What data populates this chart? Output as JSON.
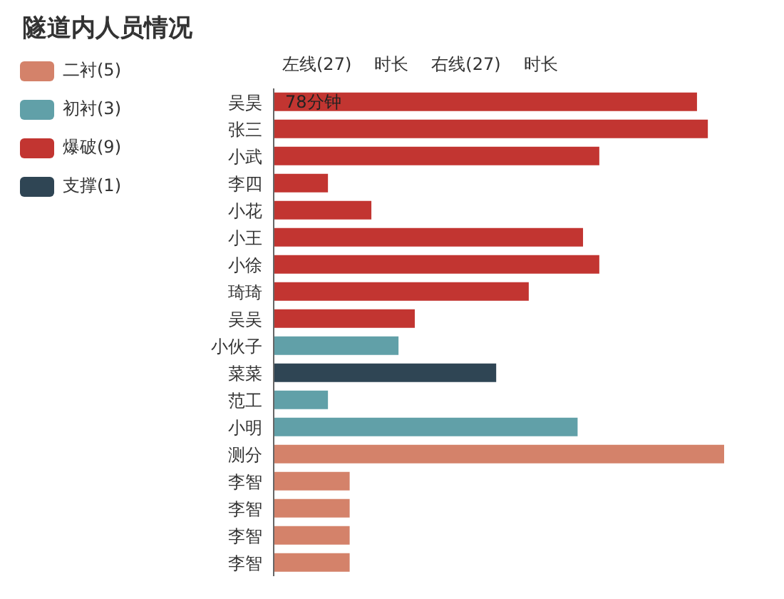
{
  "chart_data": {
    "type": "bar",
    "orientation": "horizontal",
    "stacked": true,
    "tick_labels": false,
    "title": "隧道内人员情况",
    "annotations": [
      "左线(27)",
      "时长",
      "右线(27)",
      "时长"
    ],
    "legend": "left",
    "categories": [
      "吴昊",
      "张三",
      "小武",
      "李四",
      "小花",
      "小王",
      "小徐",
      "琦琦",
      "吴吴",
      "小伙子",
      "菜菜",
      "范工",
      "小明",
      "测分",
      "李智",
      "李智",
      "李智",
      "李智"
    ],
    "series": [
      {
        "name": "二衬(5)",
        "color": "#d4826a",
        "values": [
          null,
          null,
          null,
          null,
          null,
          null,
          null,
          null,
          null,
          null,
          null,
          null,
          null,
          83,
          14,
          14,
          14,
          14
        ]
      },
      {
        "name": "初衬(3)",
        "color": "#61a0a8",
        "values": [
          null,
          null,
          null,
          null,
          null,
          null,
          null,
          null,
          null,
          23,
          null,
          10,
          56,
          null,
          null,
          null,
          null,
          null
        ]
      },
      {
        "name": "爆破(9)",
        "color": "#c23531",
        "values": [
          78,
          80,
          60,
          10,
          18,
          57,
          60,
          47,
          26,
          null,
          null,
          null,
          null,
          null,
          null,
          null,
          null,
          null
        ],
        "value_labels": [
          "78分钟",
          null,
          null,
          null,
          null,
          null,
          null,
          null,
          null,
          null,
          null,
          null,
          null,
          null,
          null,
          null,
          null,
          null
        ]
      },
      {
        "name": "支撑(1)",
        "color": "#2f4554",
        "values": [
          null,
          null,
          null,
          null,
          null,
          null,
          null,
          null,
          null,
          null,
          41,
          null,
          null,
          null,
          null,
          null,
          null,
          null
        ]
      }
    ]
  }
}
